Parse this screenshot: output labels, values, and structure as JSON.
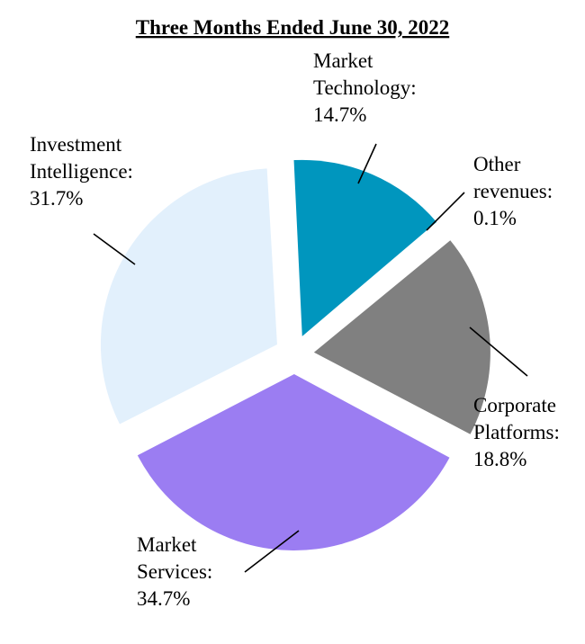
{
  "chart_data": {
    "type": "pie",
    "title": "Three Months Ended June 30, 2022",
    "slices": [
      {
        "name_lines": [
          "Market",
          "Technology:"
        ],
        "value_label": "14.7%",
        "value": 14.7,
        "color": "#0096be",
        "key": "market-technology"
      },
      {
        "name_lines": [
          "Other",
          "revenues:"
        ],
        "value_label": "0.1%",
        "value": 0.1,
        "color": "#0096be",
        "key": "other-revenues"
      },
      {
        "name_lines": [
          "Corporate",
          "Platforms:"
        ],
        "value_label": "18.8%",
        "value": 18.8,
        "color": "#808080",
        "key": "corporate-platforms"
      },
      {
        "name_lines": [
          "Market",
          "Services:"
        ],
        "value_label": "34.7%",
        "value": 34.7,
        "color": "#9b7df2",
        "key": "market-services"
      },
      {
        "name_lines": [
          "Investment",
          "Intelligence:"
        ],
        "value_label": "31.7%",
        "value": 31.7,
        "color": "#e2f0fc",
        "key": "investment-intelligence"
      }
    ]
  }
}
